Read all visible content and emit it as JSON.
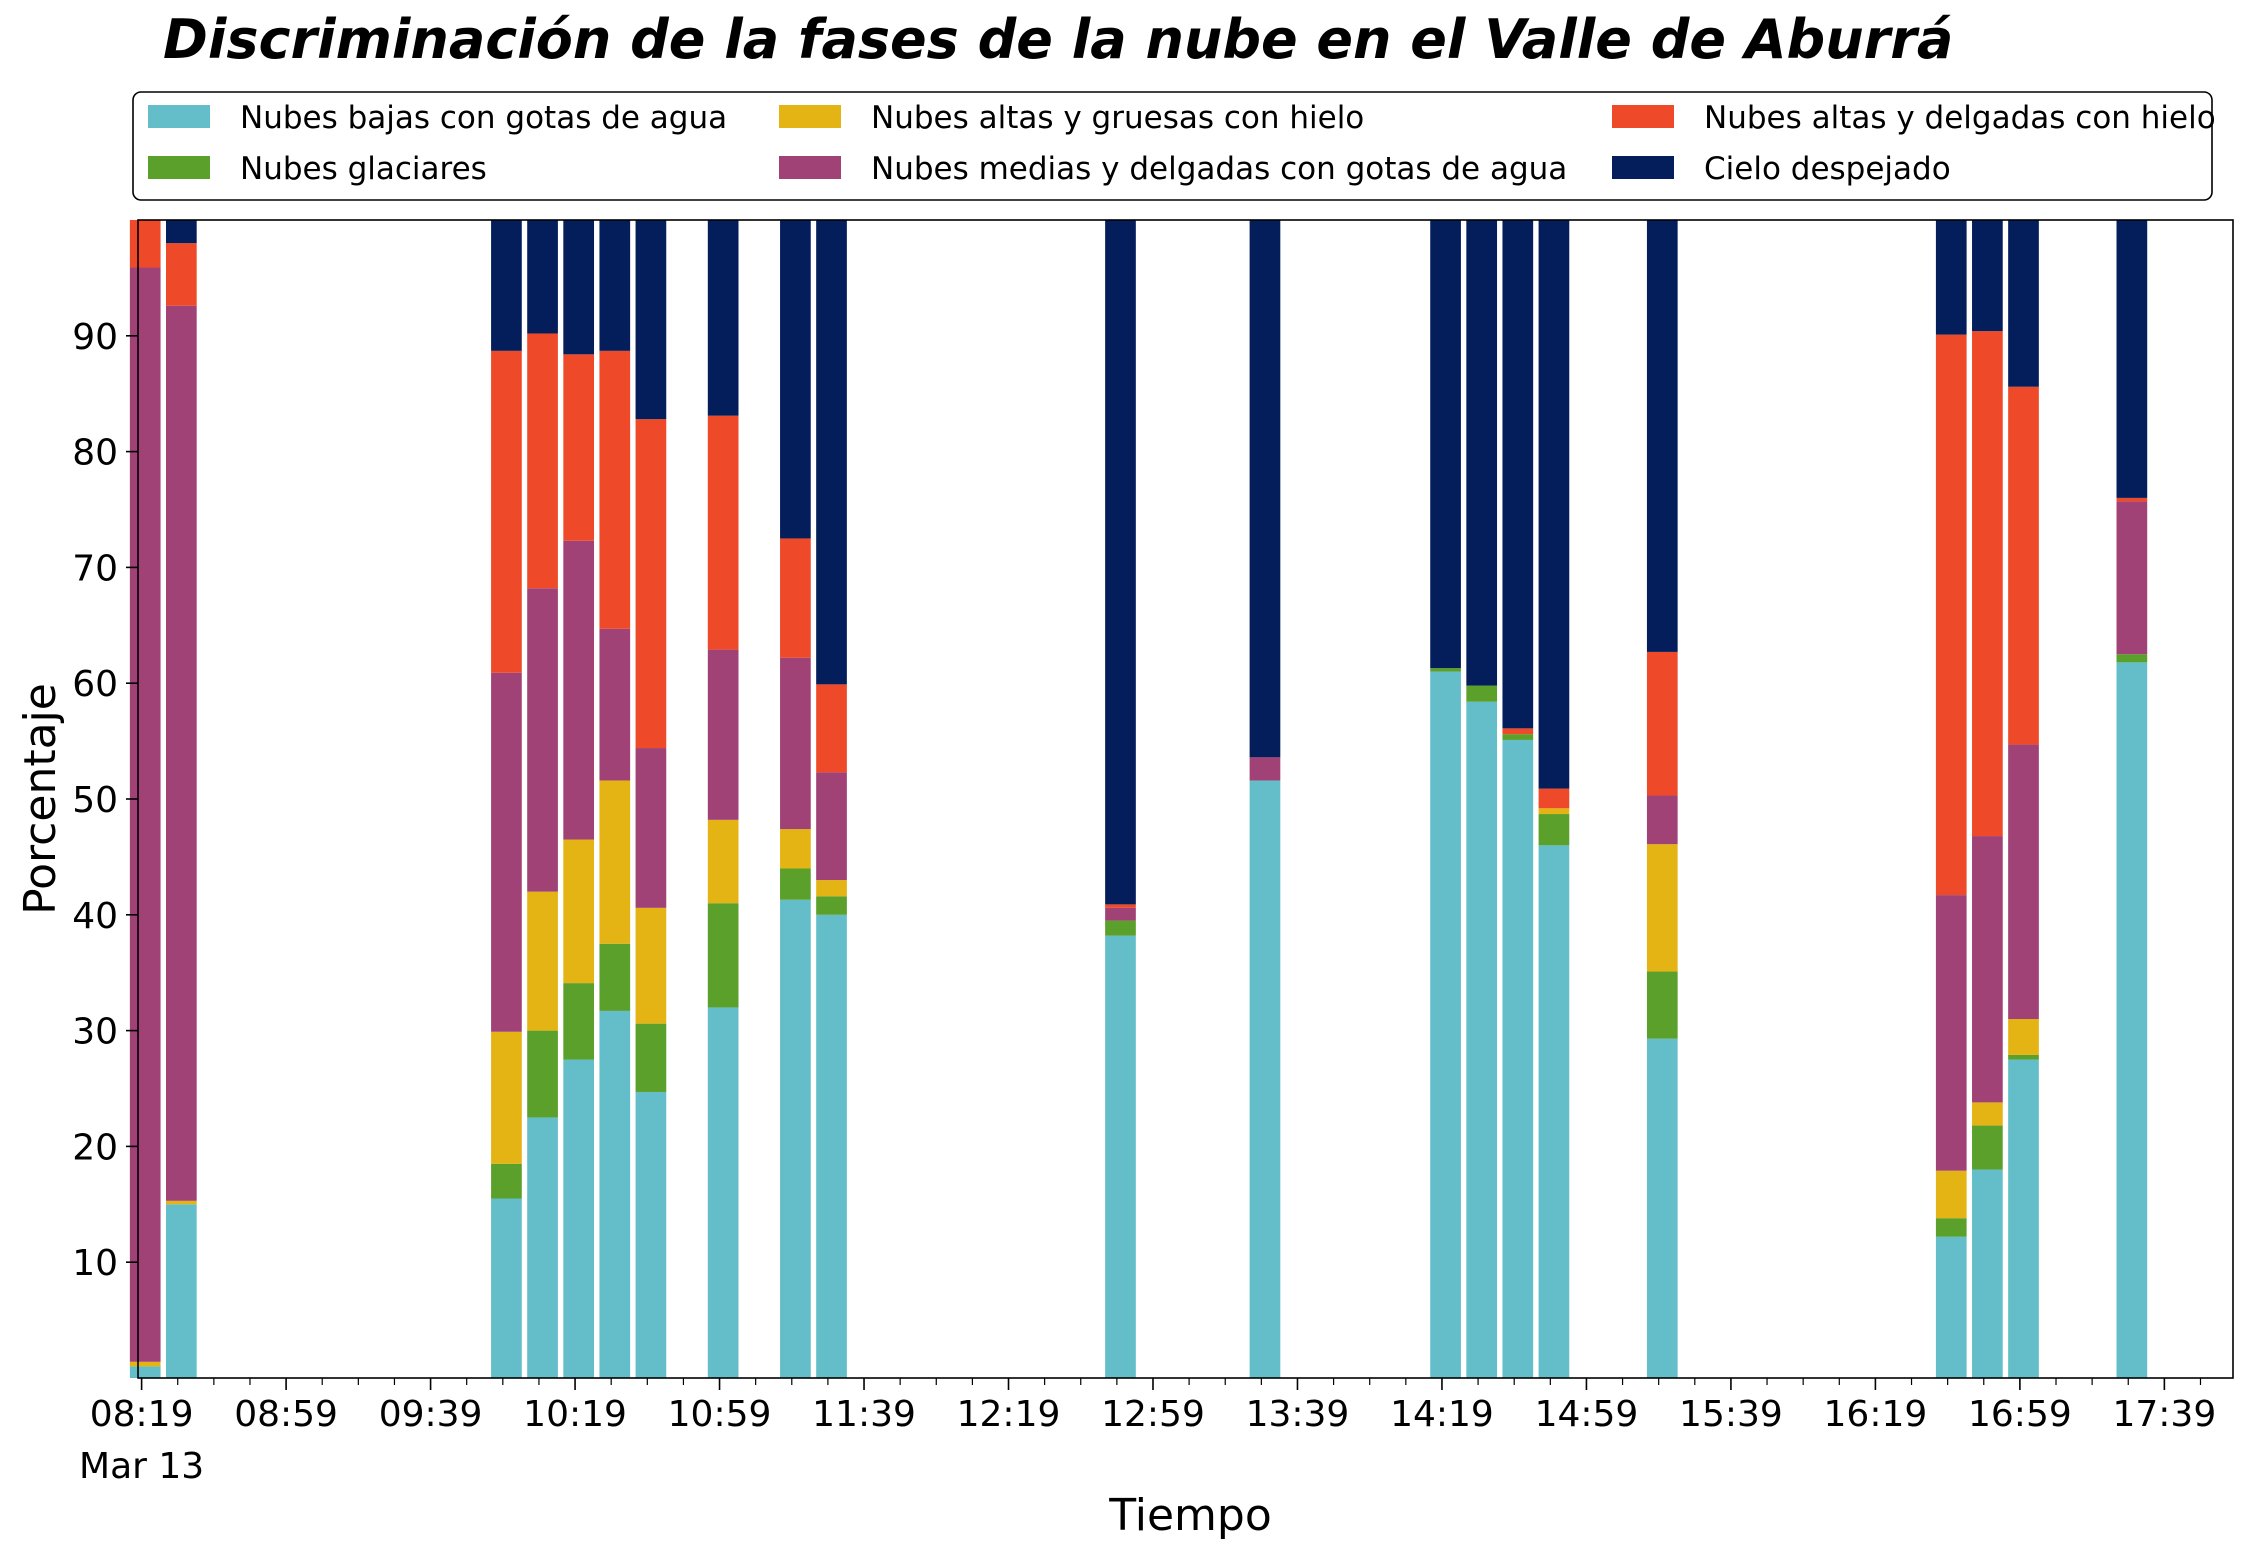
{
  "chart_data": {
    "type": "bar",
    "stacked": true,
    "title": "Discriminación de la fases de la nube en el Valle de Aburrá",
    "xlabel": "Tiempo",
    "ylabel": "Porcentaje",
    "ylim": [
      0,
      100
    ],
    "yticks": [
      10,
      20,
      30,
      40,
      50,
      60,
      70,
      80,
      90
    ],
    "xlim_minutes": [
      498,
      1078
    ],
    "xticks": [
      {
        "m": 499,
        "label": "08:19",
        "sub": "Mar 13"
      },
      {
        "m": 539,
        "label": "08:59"
      },
      {
        "m": 579,
        "label": "09:39"
      },
      {
        "m": 619,
        "label": "10:19"
      },
      {
        "m": 659,
        "label": "10:59"
      },
      {
        "m": 699,
        "label": "11:39"
      },
      {
        "m": 739,
        "label": "12:19"
      },
      {
        "m": 779,
        "label": "12:59"
      },
      {
        "m": 819,
        "label": "13:39"
      },
      {
        "m": 859,
        "label": "14:19"
      },
      {
        "m": 899,
        "label": "14:59"
      },
      {
        "m": 939,
        "label": "15:39"
      },
      {
        "m": 979,
        "label": "16:19"
      },
      {
        "m": 1019,
        "label": "16:59"
      },
      {
        "m": 1059,
        "label": "17:39"
      }
    ],
    "bar_width_minutes": 8.5,
    "x": [
      "08:20",
      "08:30",
      "10:00",
      "10:10",
      "10:20",
      "10:30",
      "10:40",
      "11:00",
      "11:20",
      "11:30",
      "12:50",
      "13:30",
      "14:20",
      "14:30",
      "14:40",
      "14:50",
      "15:20",
      "16:40",
      "16:50",
      "17:00",
      "17:30"
    ],
    "series": [
      {
        "name": "Nubes bajas con gotas de agua",
        "color": "#64bec9",
        "values": [
          1,
          15,
          15.5,
          22.5,
          27.5,
          31.7,
          24.7,
          32,
          41.3,
          40,
          38.2,
          51.6,
          61,
          58.4,
          55.1,
          46,
          29.3,
          12.2,
          18,
          27.5,
          61.8
        ]
      },
      {
        "name": "Nubes glaciares",
        "color": "#5ba02b",
        "values": [
          0,
          0,
          3,
          7.5,
          6.6,
          5.8,
          5.9,
          9,
          2.7,
          1.6,
          1.3,
          0,
          0.3,
          1.4,
          0.5,
          2.7,
          5.8,
          1.6,
          3.8,
          0.4,
          0.7
        ]
      },
      {
        "name": "Nubes altas y gruesas con hielo",
        "color": "#e3b414",
        "values": [
          0.4,
          0.3,
          11.4,
          12,
          12.4,
          14.1,
          10,
          7.2,
          3.4,
          1.4,
          0,
          0,
          0,
          0,
          0,
          0.5,
          11,
          4.1,
          2,
          3.1,
          0
        ]
      },
      {
        "name": "Nubes medias y delgadas con gotas de agua",
        "color": "#a04276",
        "values": [
          94.5,
          77.3,
          31,
          26.2,
          25.8,
          13.1,
          13.8,
          14.7,
          14.8,
          9.3,
          1.1,
          2,
          0,
          0,
          0,
          0,
          4.2,
          23.8,
          23,
          23.7,
          13.2
        ]
      },
      {
        "name": "Nubes altas y delgadas con hielo",
        "color": "#ee4a29",
        "values": [
          4.1,
          5.4,
          27.8,
          22,
          16.1,
          24,
          28.4,
          20.2,
          10.3,
          7.6,
          0.3,
          0,
          0,
          0,
          0.5,
          1.7,
          12.4,
          48.4,
          43.6,
          30.9,
          0.3
        ]
      },
      {
        "name": "Cielo despejado",
        "color": "#041e5c",
        "values": [
          0,
          2,
          11.3,
          9.8,
          11.6,
          11.3,
          17.2,
          16.9,
          27.5,
          40.1,
          59.1,
          46.4,
          38.7,
          40.2,
          43.9,
          49.1,
          37.3,
          9.9,
          9.6,
          14.4,
          24
        ]
      }
    ],
    "legend": {
      "position": "top",
      "columns": 3,
      "order": [
        0,
        2,
        4,
        1,
        3,
        5
      ]
    }
  }
}
